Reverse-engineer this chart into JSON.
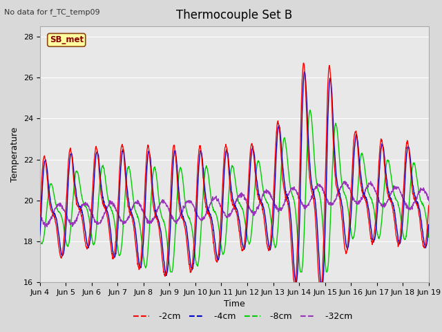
{
  "title": "Thermocouple Set B",
  "xlabel": "Time",
  "ylabel": "Temperature",
  "annotation_top_left": "No data for f_TC_temp09",
  "legend_label": "SB_met",
  "ylim": [
    16,
    28.5
  ],
  "series_colors": {
    "-2cm": "#ff0000",
    "-4cm": "#0000cc",
    "-8cm": "#00cc00",
    "-32cm": "#9933bb"
  },
  "legend_entries": [
    "-2cm",
    "-4cm",
    "-8cm",
    "-32cm"
  ],
  "xtick_labels": [
    "Jun 4",
    "Jun 5",
    "Jun 6",
    "Jun 7",
    "Jun 8",
    "Jun 9",
    "Jun 10",
    "Jun 11",
    "Jun 12",
    "Jun 13",
    "Jun 14",
    "Jun 15",
    "Jun 16",
    "Jun 17",
    "Jun 18",
    "Jun 19"
  ],
  "ytick_values": [
    16,
    18,
    20,
    22,
    24,
    26,
    28
  ],
  "fig_bg_color": "#d9d9d9",
  "plot_bg_color": "#e8e8e8",
  "grid_color": "#ffffff",
  "title_fontsize": 12,
  "axis_label_fontsize": 9,
  "tick_fontsize": 8
}
